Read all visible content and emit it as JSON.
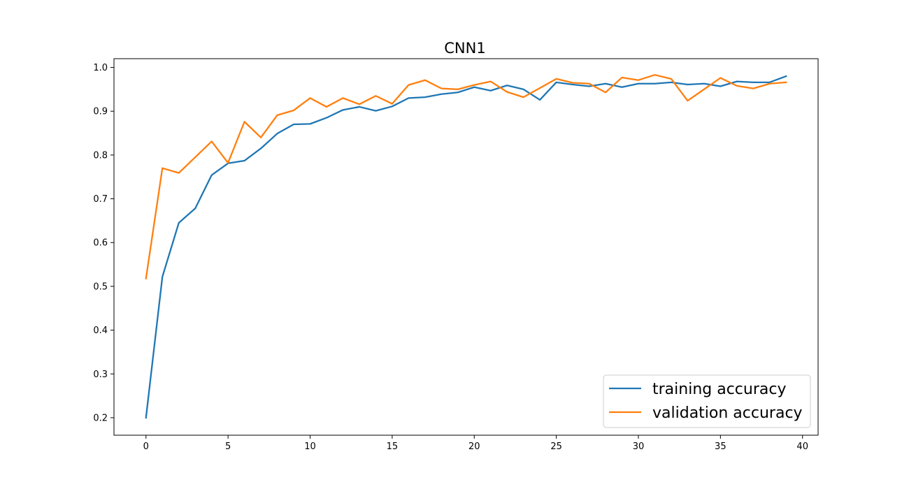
{
  "chart_data": {
    "type": "line",
    "title": "CNN1",
    "xlabel": "",
    "ylabel": "",
    "xlim": [
      -1.95,
      40.95
    ],
    "ylim": [
      0.16,
      1.02
    ],
    "xticks": [
      0,
      5,
      10,
      15,
      20,
      25,
      30,
      35,
      40
    ],
    "yticks": [
      0.2,
      0.3,
      0.4,
      0.5,
      0.6,
      0.7,
      0.8,
      0.9,
      1.0
    ],
    "ytick_labels": [
      "0.2",
      "0.3",
      "0.4",
      "0.5",
      "0.6",
      "0.7",
      "0.8",
      "0.9",
      "1.0"
    ],
    "grid": false,
    "legend_position": "lower-right",
    "x": [
      0,
      1,
      2,
      3,
      4,
      5,
      6,
      7,
      8,
      9,
      10,
      11,
      12,
      13,
      14,
      15,
      16,
      17,
      18,
      19,
      20,
      21,
      22,
      23,
      24,
      25,
      26,
      27,
      28,
      29,
      30,
      31,
      32,
      33,
      34,
      35,
      36,
      37,
      38,
      39
    ],
    "series": [
      {
        "name": "training accuracy",
        "color": "#1f77b4",
        "values": [
          0.2,
          0.522,
          0.645,
          0.678,
          0.754,
          0.781,
          0.787,
          0.815,
          0.849,
          0.87,
          0.871,
          0.885,
          0.903,
          0.91,
          0.901,
          0.911,
          0.93,
          0.932,
          0.939,
          0.943,
          0.955,
          0.947,
          0.959,
          0.95,
          0.926,
          0.966,
          0.961,
          0.957,
          0.963,
          0.955,
          0.963,
          0.963,
          0.966,
          0.961,
          0.963,
          0.957,
          0.968,
          0.966,
          0.966,
          0.98
        ]
      },
      {
        "name": "validation accuracy",
        "color": "#ff7f0e",
        "values": [
          0.518,
          0.77,
          0.759,
          0.795,
          0.831,
          0.782,
          0.876,
          0.84,
          0.891,
          0.902,
          0.93,
          0.91,
          0.93,
          0.916,
          0.935,
          0.917,
          0.96,
          0.971,
          0.952,
          0.95,
          0.96,
          0.968,
          0.944,
          0.932,
          0.953,
          0.974,
          0.965,
          0.963,
          0.943,
          0.977,
          0.971,
          0.983,
          0.974,
          0.924,
          0.95,
          0.976,
          0.958,
          0.952,
          0.963,
          0.966
        ]
      }
    ]
  }
}
